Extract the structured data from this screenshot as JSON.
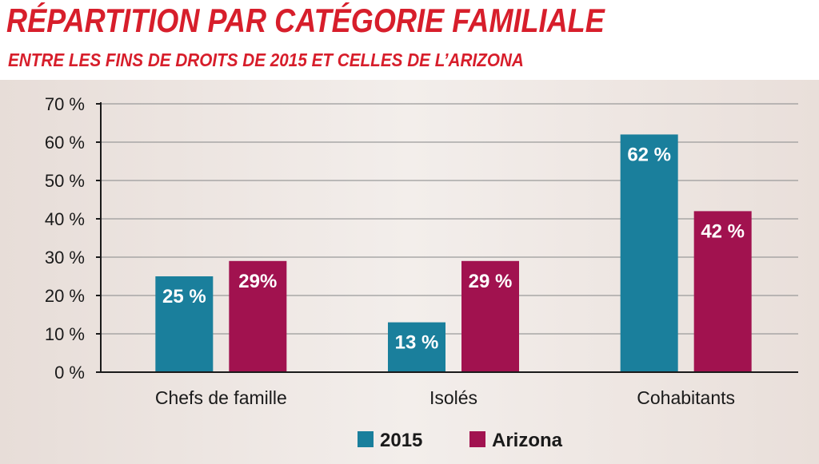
{
  "header": {
    "title": "RÉPARTITION PAR CATÉGORIE FAMILIALE",
    "subtitle": "ENTRE LES FINS DE DROITS DE 2015 ET CELLES DE L’ARIZONA"
  },
  "colors": {
    "title": "#d71e2b",
    "series_2015": "#1a7f9c",
    "series_arizona": "#a1124f"
  },
  "chart_data": {
    "type": "bar",
    "title": "RÉPARTITION PAR CATÉGORIE FAMILIALE",
    "subtitle": "ENTRE LES FINS DE DROITS DE 2015 ET CELLES DE L’ARIZONA",
    "categories": [
      "Chefs de famille",
      "Isolés",
      "Cohabitants"
    ],
    "series": [
      {
        "name": "2015",
        "values": [
          25,
          13,
          62
        ],
        "labels": [
          "25 %",
          "13 %",
          "62 %"
        ],
        "color": "#1a7f9c"
      },
      {
        "name": "Arizona",
        "values": [
          29,
          29,
          42
        ],
        "labels": [
          "29%",
          "29 %",
          "42 %"
        ],
        "color": "#a1124f"
      }
    ],
    "yticks": [
      0,
      10,
      20,
      30,
      40,
      50,
      60,
      70
    ],
    "ytick_labels": [
      "0 %",
      "10 %",
      "20 %",
      "30 %",
      "40 %",
      "50 %",
      "60 %",
      "70 %"
    ],
    "ylim": [
      0,
      70
    ],
    "xlabel": "",
    "ylabel": "",
    "grid": true,
    "legend_position": "bottom-center"
  }
}
